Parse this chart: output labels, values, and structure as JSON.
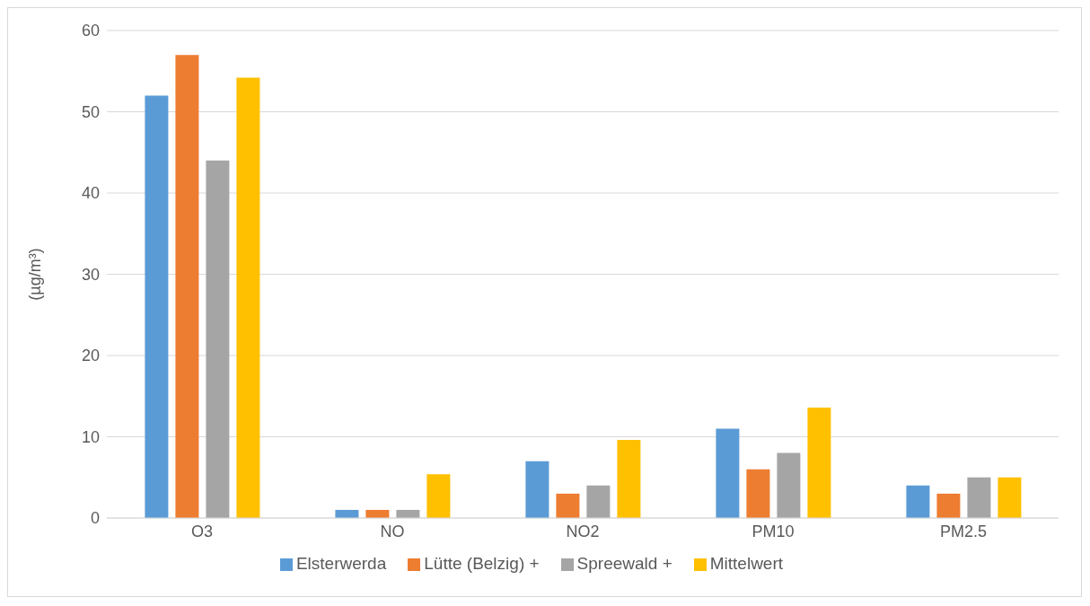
{
  "chart_data": {
    "type": "bar",
    "ylabel": "(µg/m³)",
    "categories": [
      "O3",
      "NO",
      "NO2",
      "PM10",
      "PM2.5"
    ],
    "series": [
      {
        "name": "Elsterwerda",
        "color": "#5b9bd5",
        "values": [
          52,
          1,
          7,
          11,
          4
        ]
      },
      {
        "name": "Lütte (Belzig) +",
        "color": "#ed7d31",
        "values": [
          57,
          1,
          3,
          6,
          3
        ]
      },
      {
        "name": "Spreewald +",
        "color": "#a5a5a5",
        "values": [
          44,
          1,
          4,
          8,
          5
        ]
      },
      {
        "name": "Mittelwert",
        "color": "#ffc000",
        "values": [
          54.2,
          5.4,
          9.6,
          13.6,
          5
        ]
      }
    ],
    "ylim": [
      0,
      60
    ],
    "yticks": [
      0,
      10,
      20,
      30,
      40,
      50,
      60
    ],
    "grid": "y",
    "legend": "bottom"
  }
}
